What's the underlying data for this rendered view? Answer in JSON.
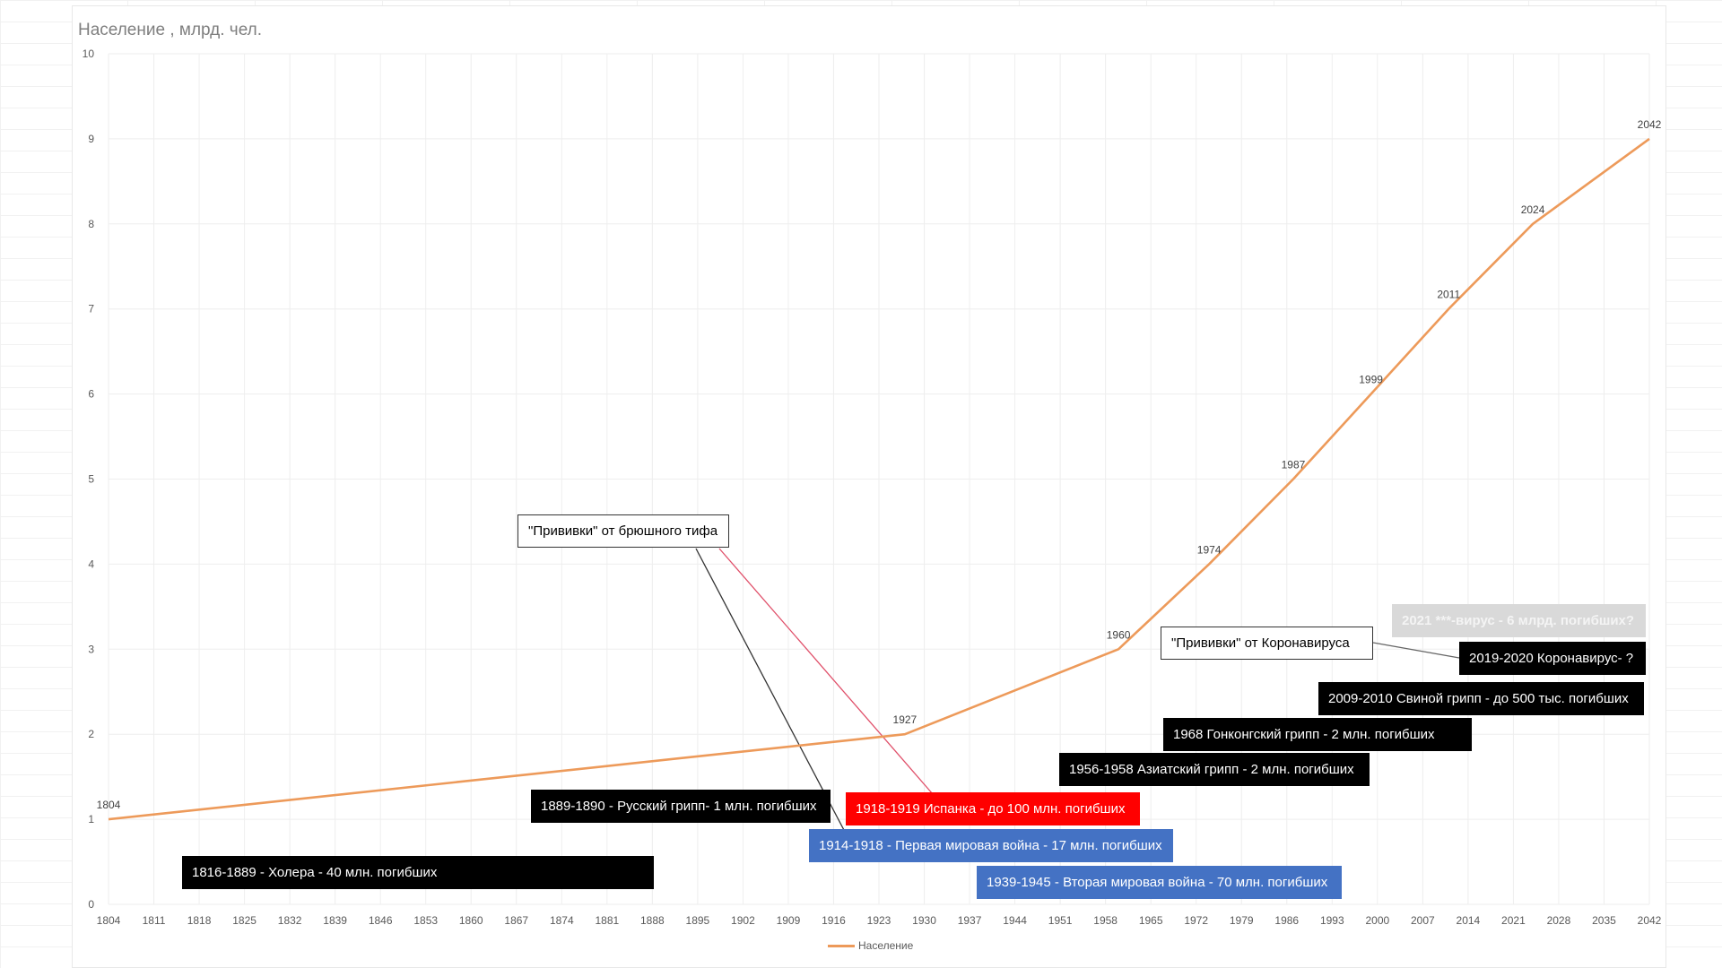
{
  "chart_data": {
    "type": "line",
    "title": "Население , млрд. чел.",
    "x": [
      1804,
      1927,
      1960,
      1974,
      1987,
      1999,
      2011,
      2024,
      2042
    ],
    "series": [
      {
        "name": "Население",
        "values": [
          1,
          2,
          3,
          4,
          5,
          6,
          7,
          8,
          9
        ]
      }
    ],
    "point_labels": [
      "1804",
      "1927",
      "1960",
      "1974",
      "1987",
      "1999",
      "2011",
      "2024",
      "2042"
    ],
    "xlim": [
      1804,
      2042
    ],
    "ylim": [
      0,
      10
    ],
    "x_ticks": [
      "1804",
      "1811",
      "1818",
      "1825",
      "1832",
      "1839",
      "1846",
      "1853",
      "1860",
      "1867",
      "1874",
      "1881",
      "1888",
      "1895",
      "1902",
      "1909",
      "1916",
      "1923",
      "1930",
      "1937",
      "1944",
      "1951",
      "1958",
      "1965",
      "1972",
      "1979",
      "1986",
      "1993",
      "2000",
      "2007",
      "2014",
      "2021",
      "2028",
      "2035",
      "2042"
    ],
    "y_ticks": [
      "0",
      "1",
      "2",
      "3",
      "4",
      "5",
      "6",
      "7",
      "8",
      "9",
      "10"
    ],
    "grid": true,
    "legend_position": "bottom",
    "colors": {
      "series": "#ed9a5a",
      "grid": "#eeeeee"
    },
    "annotations": [
      {
        "text": "1816-1889 - Холера - 40 млн. погибших",
        "style": "black"
      },
      {
        "text": "1889-1890 - Русский грипп- 1 млн. погибших",
        "style": "black"
      },
      {
        "text": "1918-1919 Испанка - до 100 млн. погибших",
        "style": "red"
      },
      {
        "text": "1914-1918 - Первая мировая война - 17 млн. погибших",
        "style": "blue"
      },
      {
        "text": "1939-1945 - Вторая мировая война - 70 млн. погибших",
        "style": "blue"
      },
      {
        "text": "1956-1958 Азиатский грипп - 2 млн. погибших",
        "style": "black"
      },
      {
        "text": "1968 Гонконгский грипп - 2 млн. погибших",
        "style": "black"
      },
      {
        "text": "2009-2010 Свиной грипп - до 500 тыс. погибших",
        "style": "black"
      },
      {
        "text": "2019-2020 Коронавирус- ?",
        "style": "black"
      },
      {
        "text": "2021 ***-вирус - 6 млрд. погибших?",
        "style": "grey"
      },
      {
        "text": "\"Прививки\" от брюшного тифа",
        "style": "white"
      },
      {
        "text": "\"Прививки\" от Коронавируса",
        "style": "white"
      }
    ]
  }
}
